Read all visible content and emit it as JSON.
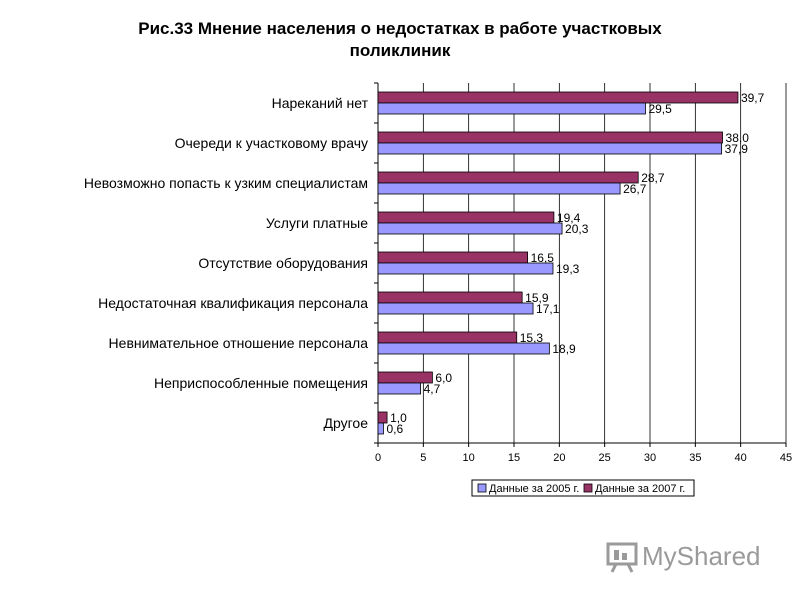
{
  "chart_data": {
    "type": "bar",
    "orientation": "horizontal",
    "title_line1": "Рис.33   Мнение населения о недостатках в работе участковых",
    "title_line2": "поликлиник",
    "categories": [
      "Нареканий нет",
      "Очереди  к участковому врачу",
      "Невозможно попасть   к узким специалистам",
      "Услуги платные",
      "Отсутствие оборудования",
      "Недостаточная квалификация персонала",
      "Невнимательное отношение персонала",
      "Неприспособленные помещения",
      "Другое"
    ],
    "series": [
      {
        "name": "Данные за 2007 г.",
        "color": "#993366",
        "values": [
          39.7,
          38.0,
          28.7,
          19.4,
          16.5,
          15.9,
          15.3,
          6.0,
          1.0
        ],
        "labels": [
          "39,7",
          "38,0",
          "28,7",
          "19,4",
          "16,5",
          "15,9",
          "15,3",
          "6,0",
          "1,0"
        ]
      },
      {
        "name": "Данные за 2005 г.",
        "color": "#9999ff",
        "values": [
          29.5,
          37.9,
          26.7,
          20.3,
          19.3,
          17.1,
          18.9,
          4.7,
          0.6
        ],
        "labels": [
          "29,5",
          "37,9",
          "26,7",
          "20,3",
          "19,3",
          "17,1",
          "18,9",
          "4,7",
          "0,6"
        ]
      }
    ],
    "xlim": [
      0,
      45
    ],
    "xticks": [
      "0",
      "5",
      "10",
      "15",
      "20",
      "25",
      "30",
      "35",
      "40",
      "45"
    ],
    "grid": "vertical",
    "legend_position": "bottom",
    "legend": [
      "Данные за 2005 г.",
      "Данные за 2007 г."
    ]
  },
  "watermark": {
    "text": "MyShared",
    "icon": "presentation-board-icon"
  }
}
